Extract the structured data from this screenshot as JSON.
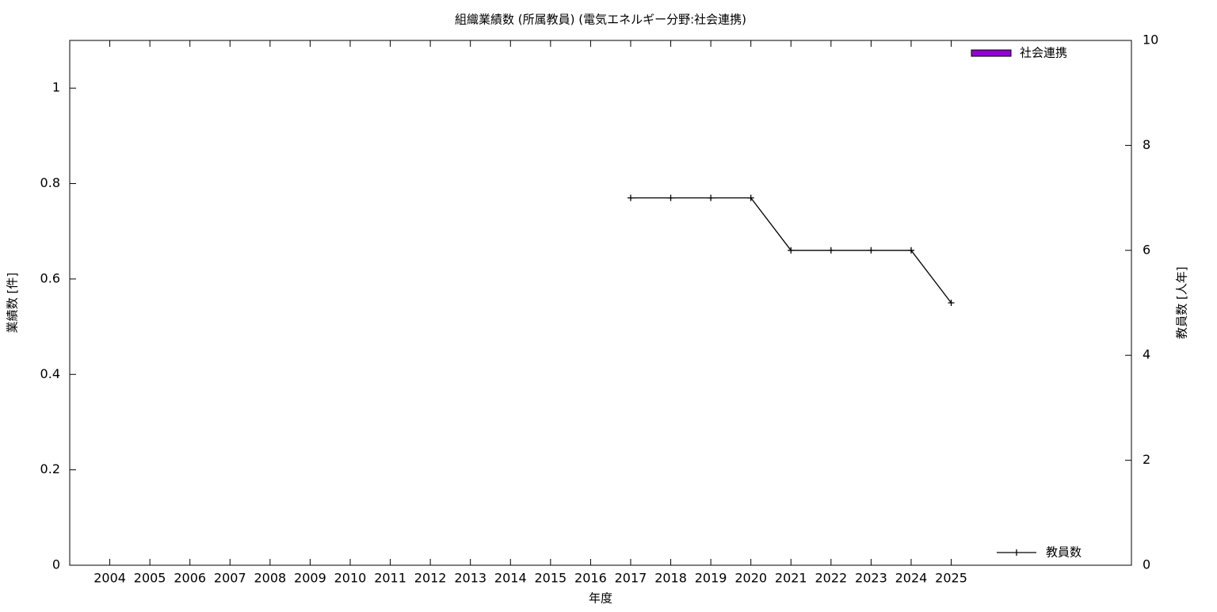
{
  "chart_data": {
    "type": "bar",
    "title": "組織業績数 (所属教員) (電気エネルギー分野:社会連携)",
    "x_label": "年度",
    "y_label": "業績数 [件]",
    "y2_label": "教員数 [人年]",
    "categories": [
      "2004",
      "2005",
      "2006",
      "2007",
      "2008",
      "2009",
      "2010",
      "2011",
      "2012",
      "2013",
      "2014",
      "2015",
      "2016",
      "2017",
      "2018",
      "2019",
      "2020",
      "2021",
      "2022",
      "2023",
      "2024",
      "2025"
    ],
    "series": [
      {
        "name": "社会連携",
        "type": "bar",
        "color": "#9400d3",
        "legend": "top right",
        "values": [
          0,
          0,
          0,
          0,
          0,
          0,
          0,
          0,
          0,
          0,
          0,
          0,
          0,
          0,
          0,
          0,
          0,
          0,
          0,
          0,
          0,
          0
        ]
      },
      {
        "name": "教員数",
        "type": "line",
        "axis": "y2",
        "color": "#000000",
        "legend": "bottom right",
        "values": [
          null,
          null,
          null,
          null,
          null,
          null,
          null,
          null,
          null,
          null,
          null,
          null,
          null,
          7,
          7,
          7,
          7,
          6,
          6,
          6,
          6,
          5
        ]
      }
    ],
    "ylim": [
      0,
      1.1
    ],
    "yticks": [
      0,
      0.2,
      0.4,
      0.6,
      0.8,
      1
    ],
    "y2lim": [
      0,
      10
    ],
    "y2ticks": [
      0,
      2,
      4,
      6,
      8,
      10
    ],
    "grid": false
  }
}
